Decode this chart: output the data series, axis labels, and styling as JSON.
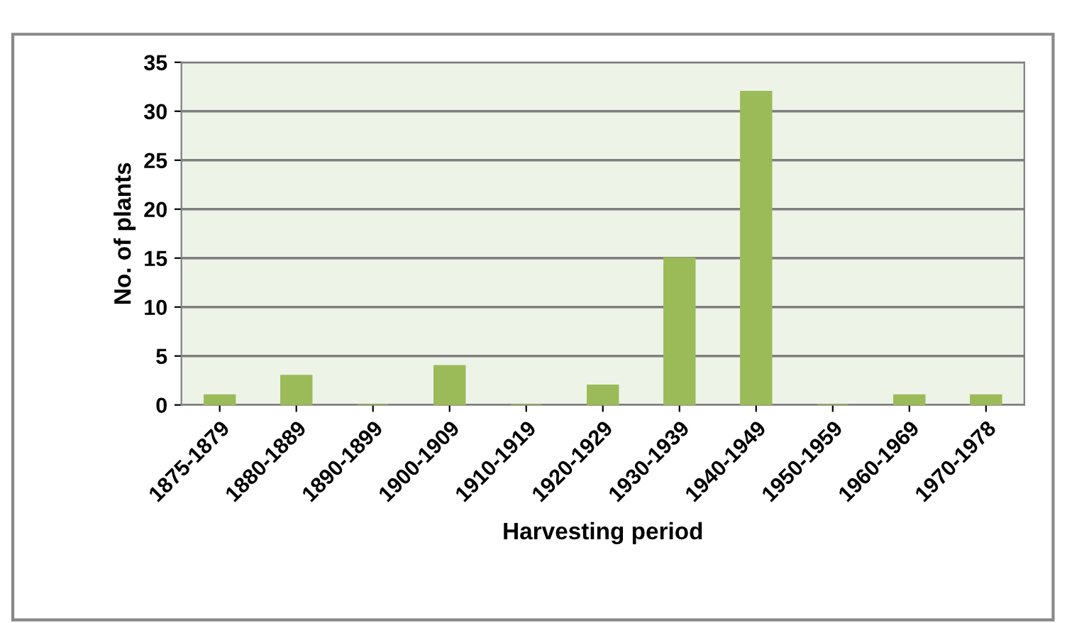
{
  "chart_data": {
    "type": "bar",
    "xlabel": "Harvesting period",
    "ylabel": "No. of plants",
    "categories": [
      "1875-1879",
      "1880-1889",
      "1890-1899",
      "1900-1909",
      "1910-1919",
      "1920-1929",
      "1930-1939",
      "1940-1949",
      "1950-1959",
      "1960-1969",
      "1970-1978"
    ],
    "values": [
      1,
      3,
      0,
      4,
      0,
      2,
      15,
      32,
      0,
      1,
      1
    ],
    "color": "#9bbb59",
    "ylim": [
      0,
      35
    ],
    "yticks": [
      0,
      5,
      10,
      15,
      20,
      25,
      30,
      35
    ],
    "grid": "y"
  }
}
